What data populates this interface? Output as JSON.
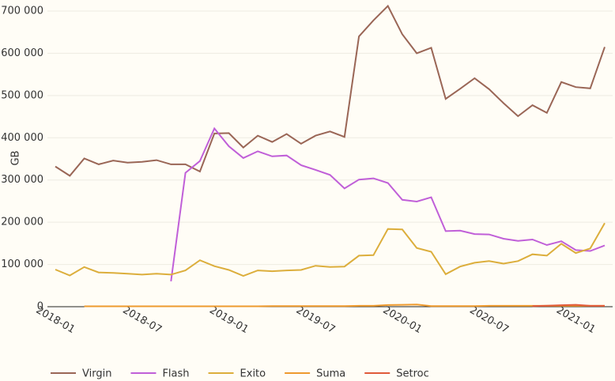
{
  "chart_data": {
    "type": "line",
    "y_label": "GB",
    "x": [
      "2018-01",
      "2018-02",
      "2018-03",
      "2018-04",
      "2018-05",
      "2018-06",
      "2018-07",
      "2018-08",
      "2018-09",
      "2018-10",
      "2018-11",
      "2018-12",
      "2019-01",
      "2019-02",
      "2019-03",
      "2019-04",
      "2019-05",
      "2019-06",
      "2019-07",
      "2019-08",
      "2019-09",
      "2019-10",
      "2019-11",
      "2019-12",
      "2020-01",
      "2020-02",
      "2020-03",
      "2020-04",
      "2020-05",
      "2020-06",
      "2020-07",
      "2020-08",
      "2020-09",
      "2020-10",
      "2020-11",
      "2020-12",
      "2021-01",
      "2021-02",
      "2021-03"
    ],
    "xticks": [
      "2018-01",
      "2018-07",
      "2019-01",
      "2019-07",
      "2020-01",
      "2020-07",
      "2021-01"
    ],
    "ylim": [
      0,
      700000
    ],
    "yticks": [
      {
        "value": 0,
        "label": "0"
      },
      {
        "value": 100000,
        "label": "100 000"
      },
      {
        "value": 200000,
        "label": "200 000"
      },
      {
        "value": 300000,
        "label": "300 000"
      },
      {
        "value": 400000,
        "label": "400 000"
      },
      {
        "value": 500000,
        "label": "500 000"
      },
      {
        "value": 600000,
        "label": "600 000"
      },
      {
        "value": 700000,
        "label": "700 000"
      }
    ],
    "grid": true,
    "legend": "bottom",
    "series": [
      {
        "name": "Virgin",
        "color": "#9a6656",
        "values": [
          332000,
          310000,
          351000,
          337000,
          346000,
          341000,
          343000,
          347000,
          337000,
          337000,
          320000,
          410000,
          411000,
          377000,
          405000,
          390000,
          409000,
          386000,
          405000,
          415000,
          402000,
          640000,
          678000,
          712000,
          645000,
          600000,
          613000,
          492000,
          516000,
          541000,
          515000,
          482000,
          451000,
          477000,
          459000,
          532000,
          520000,
          517000,
          615000
        ]
      },
      {
        "name": "Flash",
        "color": "#c05fd8",
        "values": [
          null,
          null,
          null,
          null,
          null,
          null,
          null,
          null,
          60000,
          317000,
          345000,
          422000,
          380000,
          352000,
          368000,
          356000,
          358000,
          335000,
          324000,
          312000,
          280000,
          301000,
          304000,
          293000,
          253000,
          249000,
          259000,
          179000,
          180000,
          172000,
          171000,
          161000,
          156000,
          159000,
          146000,
          155000,
          134000,
          132000,
          145000
        ]
      },
      {
        "name": "Exito",
        "color": "#dcae3c",
        "values": [
          88000,
          74000,
          94000,
          81000,
          80000,
          78000,
          76000,
          78000,
          76000,
          86000,
          110000,
          96000,
          87000,
          73000,
          86000,
          84000,
          86000,
          87000,
          97000,
          94000,
          95000,
          121000,
          122000,
          184000,
          183000,
          139000,
          130000,
          77000,
          95000,
          104000,
          108000,
          102000,
          108000,
          124000,
          121000,
          149000,
          127000,
          138000,
          198000
        ]
      },
      {
        "name": "Suma",
        "color": "#ee9a2e",
        "values": [
          null,
          null,
          1000,
          1000,
          1000,
          1000,
          1000,
          1000,
          1000,
          1000,
          1000,
          1000,
          1000,
          1000,
          1000,
          1500,
          1500,
          1500,
          1500,
          1500,
          1500,
          2000,
          2000,
          4000,
          4500,
          5000,
          1500,
          1500,
          1500,
          1500,
          2000,
          2000,
          2000,
          2000,
          2000,
          2000,
          2000,
          2000,
          2000
        ]
      },
      {
        "name": "Setroc",
        "color": "#e05a3a",
        "values": [
          null,
          null,
          null,
          null,
          null,
          null,
          null,
          null,
          null,
          null,
          null,
          null,
          null,
          null,
          null,
          null,
          null,
          null,
          null,
          null,
          null,
          null,
          null,
          null,
          null,
          null,
          null,
          null,
          null,
          null,
          null,
          null,
          null,
          1500,
          2500,
          3500,
          4500,
          2000,
          2000
        ]
      }
    ]
  }
}
